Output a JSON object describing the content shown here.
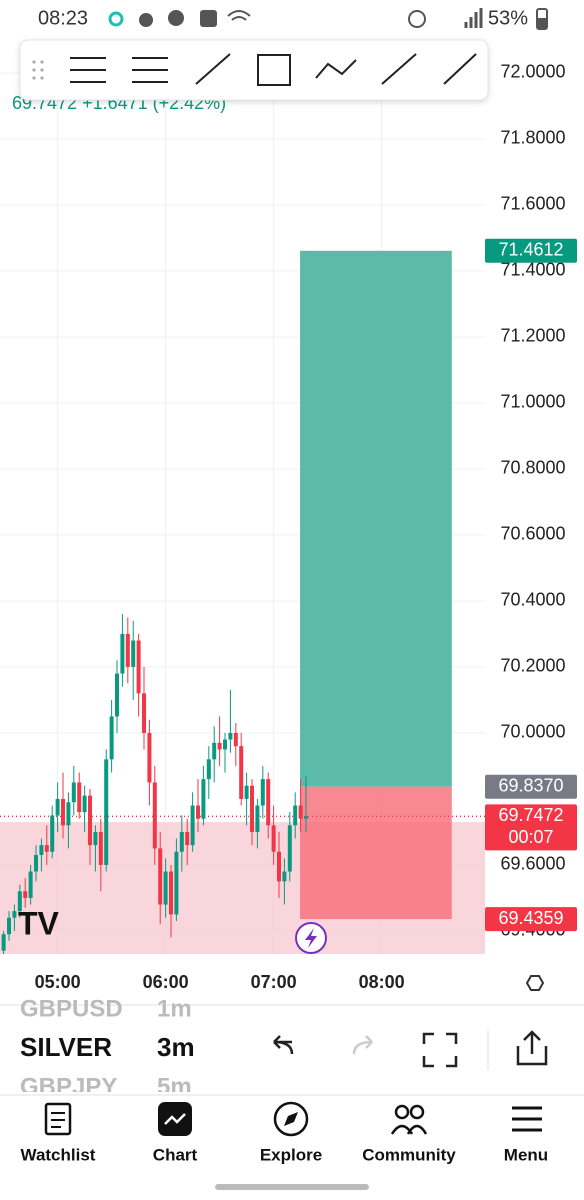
{
  "status_bar": {
    "time": "08:23",
    "battery": "53%"
  },
  "header": {
    "quote": "69.7472 +1.6471 (+2.42%)"
  },
  "chart_data": {
    "type": "candlestick",
    "up_color": "#089981",
    "down_color": "#f23645",
    "x": [
      0,
      1,
      2,
      3,
      4,
      5,
      6,
      7,
      8,
      9,
      10,
      11,
      12,
      13,
      14,
      15,
      16,
      17,
      18,
      19,
      20,
      21,
      22,
      23,
      24,
      25,
      26,
      27,
      28,
      29,
      30,
      31,
      32,
      33,
      34,
      35,
      36,
      37,
      38,
      39,
      40,
      41,
      42,
      43,
      44,
      45,
      46,
      47,
      48,
      49,
      50,
      51,
      52,
      53,
      54,
      55,
      56
    ],
    "open": [
      69.34,
      69.39,
      69.44,
      69.46,
      69.52,
      69.5,
      69.58,
      69.63,
      69.66,
      69.64,
      69.75,
      69.8,
      69.72,
      69.79,
      69.85,
      69.76,
      69.81,
      69.66,
      69.7,
      69.6,
      69.92,
      70.05,
      70.18,
      70.3,
      70.2,
      70.28,
      70.12,
      70.0,
      69.85,
      69.65,
      69.48,
      69.58,
      69.45,
      69.64,
      69.7,
      69.66,
      69.78,
      69.74,
      69.86,
      69.92,
      69.97,
      69.95,
      69.98,
      70.0,
      69.96,
      69.8,
      69.84,
      69.7,
      69.78,
      69.86,
      69.72,
      69.64,
      69.55,
      69.58,
      69.72,
      69.78,
      69.74
    ],
    "high": [
      69.4,
      69.46,
      69.48,
      69.54,
      69.56,
      69.6,
      69.66,
      69.68,
      69.72,
      69.78,
      69.85,
      69.88,
      69.82,
      69.9,
      69.88,
      69.84,
      69.83,
      69.72,
      69.74,
      69.95,
      70.1,
      70.22,
      70.36,
      70.35,
      70.34,
      70.3,
      70.2,
      70.04,
      69.9,
      69.7,
      69.62,
      69.6,
      69.68,
      69.75,
      69.74,
      69.82,
      69.86,
      69.9,
      69.96,
      70.02,
      70.05,
      70.0,
      70.13,
      70.03,
      70.0,
      69.88,
      69.86,
      69.8,
      69.9,
      69.88,
      69.78,
      69.7,
      69.62,
      69.76,
      69.82,
      69.86,
      69.87
    ],
    "low": [
      69.33,
      69.37,
      69.4,
      69.44,
      69.47,
      69.48,
      69.55,
      69.58,
      69.6,
      69.62,
      69.7,
      69.68,
      69.65,
      69.75,
      69.74,
      69.7,
      69.6,
      69.58,
      69.52,
      69.58,
      69.88,
      70.0,
      70.14,
      70.15,
      70.1,
      70.05,
      69.95,
      69.78,
      69.6,
      69.42,
      69.44,
      69.38,
      69.43,
      69.58,
      69.6,
      69.64,
      69.7,
      69.72,
      69.8,
      69.85,
      69.9,
      69.88,
      69.94,
      69.9,
      69.78,
      69.72,
      69.66,
      69.65,
      69.74,
      69.68,
      69.6,
      69.5,
      69.48,
      69.55,
      69.68,
      69.7,
      69.7
    ],
    "close": [
      69.39,
      69.44,
      69.46,
      69.52,
      69.5,
      69.58,
      69.63,
      69.66,
      69.64,
      69.75,
      69.8,
      69.72,
      69.79,
      69.85,
      69.76,
      69.81,
      69.66,
      69.7,
      69.6,
      69.92,
      70.05,
      70.18,
      70.3,
      70.2,
      70.28,
      70.12,
      70.0,
      69.85,
      69.65,
      69.48,
      69.58,
      69.45,
      69.64,
      69.7,
      69.66,
      69.78,
      69.74,
      69.86,
      69.92,
      69.97,
      69.95,
      69.98,
      70.0,
      69.96,
      69.8,
      69.84,
      69.7,
      69.78,
      69.86,
      69.72,
      69.64,
      69.55,
      69.58,
      69.72,
      69.78,
      69.74,
      69.7472
    ],
    "xlim": [
      -0.67,
      89.15
    ],
    "ylim": [
      69.327,
      72.1
    ],
    "xticks": [
      {
        "value": 10,
        "label": "05:00"
      },
      {
        "value": 30,
        "label": "06:00"
      },
      {
        "value": 50,
        "label": "07:00"
      },
      {
        "value": 70,
        "label": "08:00"
      }
    ],
    "yticks": [
      {
        "value": 72,
        "label": "72.0000"
      },
      {
        "value": 71.8,
        "label": "71.8000"
      },
      {
        "value": 71.6,
        "label": "71.6000"
      },
      {
        "value": 71.4,
        "label": "71.4000"
      },
      {
        "value": 71.2,
        "label": "71.2000"
      },
      {
        "value": 71,
        "label": "71.0000"
      },
      {
        "value": 70.8,
        "label": "70.8000"
      },
      {
        "value": 70.6,
        "label": "70.6000"
      },
      {
        "value": 70.4,
        "label": "70.4000"
      },
      {
        "value": 70.2,
        "label": "70.2000"
      },
      {
        "value": 70,
        "label": "70.0000"
      },
      {
        "value": 69.6,
        "label": "69.6000"
      },
      {
        "value": 69.4,
        "label": "69.4000"
      }
    ],
    "grid": true,
    "zone": {
      "top": 69.73,
      "bottom": 69.33,
      "color": "#f7c5cc"
    },
    "position": {
      "x": [
        54.9,
        83.0
      ],
      "profit_color": "#5cbba8",
      "loss_color": "#f7737f",
      "target": {
        "value": 71.4612,
        "label": "71.4612"
      },
      "entry": {
        "value": 69.837,
        "label": "69.8370"
      },
      "stop": {
        "value": 69.4359,
        "label": "69.4359"
      }
    },
    "current_price": {
      "value": 69.7472,
      "label": "69.7472",
      "countdown": "00:07"
    }
  },
  "symbols": [
    {
      "symbol": "GBPUSD",
      "interval": "1m"
    },
    {
      "symbol": "SILVER",
      "interval": "3m"
    },
    {
      "symbol": "GBPJPY",
      "interval": "5m"
    }
  ],
  "nav": [
    "Watchlist",
    "Chart",
    "Explore",
    "Community",
    "Menu"
  ]
}
